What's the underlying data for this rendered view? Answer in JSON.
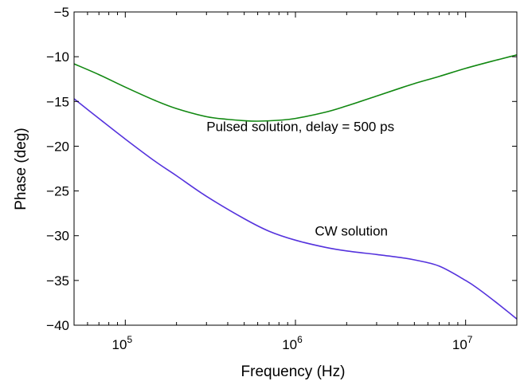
{
  "chart_data": {
    "type": "line",
    "title": "",
    "xlabel": "Frequency (Hz)",
    "ylabel": "Phase (deg)",
    "xscale": "log",
    "xlim": [
      50000,
      20000000
    ],
    "ylim": [
      -40,
      -5
    ],
    "grid": false,
    "x_ticks": [
      {
        "value": 100000,
        "base": "10",
        "exp": "5"
      },
      {
        "value": 1000000,
        "base": "10",
        "exp": "6"
      },
      {
        "value": 10000000,
        "base": "10",
        "exp": "7"
      }
    ],
    "y_ticks": [
      -40,
      -35,
      -30,
      -25,
      -20,
      -15,
      -10,
      -5
    ],
    "y_tick_labels": [
      "−40",
      "−35",
      "−30",
      "−25",
      "−20",
      "−15",
      "−10",
      "−5"
    ],
    "series": [
      {
        "color": "#118811",
        "x": [
          50000,
          70000,
          100000,
          150000,
          200000,
          300000,
          400000,
          500000,
          600000,
          800000,
          1000000,
          1500000,
          2000000,
          3000000,
          4000000,
          5000000,
          7000000,
          10000000,
          15000000,
          20000000
        ],
        "y": [
          -10.8,
          -12.0,
          -13.4,
          -14.9,
          -15.8,
          -16.7,
          -17.0,
          -17.15,
          -17.2,
          -17.1,
          -16.9,
          -16.2,
          -15.5,
          -14.4,
          -13.6,
          -13.0,
          -12.2,
          -11.3,
          -10.4,
          -9.8
        ]
      },
      {
        "color": "#5533dd",
        "x": [
          50000,
          70000,
          100000,
          150000,
          200000,
          300000,
          500000,
          700000,
          1000000,
          1500000,
          2000000,
          3000000,
          4000000,
          5000000,
          7000000,
          10000000,
          12000000,
          15000000,
          20000000
        ],
        "y": [
          -14.7,
          -16.9,
          -19.2,
          -21.7,
          -23.3,
          -25.6,
          -28.1,
          -29.5,
          -30.5,
          -31.3,
          -31.7,
          -32.1,
          -32.4,
          -32.7,
          -33.4,
          -35.0,
          -36.0,
          -37.4,
          -39.3
        ]
      }
    ],
    "annotations": [
      {
        "text": "Pulsed solution, delay = 500 ps",
        "x": 300000,
        "y": -18.3
      },
      {
        "text": "CW solution",
        "x": 1300000,
        "y": -30.0
      }
    ]
  }
}
